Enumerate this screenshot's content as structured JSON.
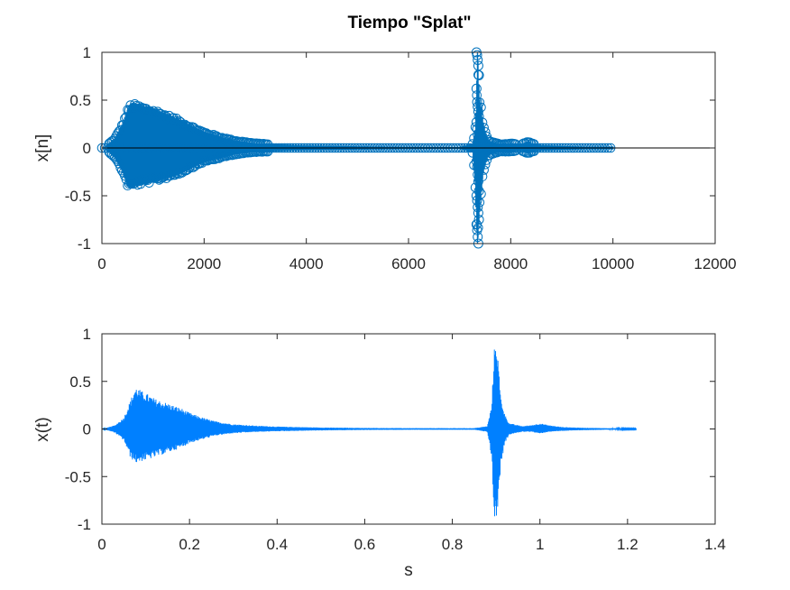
{
  "figure": {
    "title": "Tiempo \"Splat\""
  },
  "chart_data": [
    {
      "type": "line",
      "marker": "circle",
      "title": "Tiempo \"Splat\"",
      "xlabel": "",
      "ylabel": "x[n]",
      "xlim": [
        0,
        12000
      ],
      "ylim": [
        -1,
        1
      ],
      "xticks": [
        0,
        2000,
        4000,
        6000,
        8000,
        10000,
        12000
      ],
      "xtick_labels": [
        "0",
        "2000",
        "4000",
        "6000",
        "8000",
        "10000",
        "12000"
      ],
      "yticks": [
        -1,
        -0.5,
        0,
        0.5,
        1
      ],
      "ytick_labels": [
        "-1",
        "-0.5",
        "0",
        "0.5",
        "1"
      ],
      "grid": false,
      "color": "#0072BD",
      "baseline": 0,
      "num_samples": 10000,
      "envelope": {
        "x": [
          0,
          100,
          250,
          400,
          500,
          560,
          600,
          650,
          800,
          1000,
          1200,
          1500,
          1800,
          2000,
          2300,
          2600,
          3000,
          3500,
          4000,
          5000,
          6000,
          7000,
          7250,
          7300,
          7330,
          7350,
          7380,
          7400,
          7430,
          7450,
          7500,
          7550,
          7600,
          7800,
          8000,
          8200,
          8300,
          8350,
          8400,
          8600,
          9000,
          9500,
          10000
        ],
        "upper": [
          0,
          0.03,
          0.1,
          0.25,
          0.4,
          0.46,
          0.47,
          0.46,
          0.44,
          0.41,
          0.37,
          0.3,
          0.22,
          0.17,
          0.12,
          0.08,
          0.05,
          0.035,
          0.025,
          0.018,
          0.014,
          0.012,
          0.04,
          0.15,
          0.45,
          1.0,
          0.6,
          0.45,
          0.42,
          0.3,
          0.18,
          0.1,
          0.07,
          0.04,
          0.05,
          0.04,
          0.06,
          0.07,
          0.05,
          0.03,
          0.02,
          0.015,
          0.015
        ],
        "lower": [
          0,
          -0.03,
          -0.1,
          -0.25,
          -0.4,
          -0.42,
          -0.41,
          -0.4,
          -0.38,
          -0.36,
          -0.33,
          -0.28,
          -0.2,
          -0.15,
          -0.11,
          -0.07,
          -0.045,
          -0.032,
          -0.024,
          -0.018,
          -0.014,
          -0.012,
          -0.04,
          -0.3,
          -0.75,
          -1.0,
          -0.75,
          -0.6,
          -0.45,
          -0.3,
          -0.18,
          -0.1,
          -0.07,
          -0.04,
          -0.04,
          -0.03,
          -0.05,
          -0.06,
          -0.04,
          -0.03,
          -0.02,
          -0.015,
          -0.015
        ]
      }
    },
    {
      "type": "line",
      "title": "",
      "xlabel": "s",
      "ylabel": "x(t)",
      "xlim": [
        0,
        1.4
      ],
      "ylim": [
        -1,
        1
      ],
      "xticks": [
        0,
        0.2,
        0.4,
        0.6,
        0.8,
        1,
        1.2,
        1.4
      ],
      "xtick_labels": [
        "0",
        "0.2",
        "0.4",
        "0.6",
        "0.8",
        "1",
        "1.2",
        "1.4"
      ],
      "yticks": [
        -1,
        -0.5,
        0,
        0.5,
        1
      ],
      "ytick_labels": [
        "-1",
        "-0.5",
        "0",
        "0.5",
        "1"
      ],
      "grid": false,
      "color": "#0080FF",
      "envelope": {
        "x": [
          0,
          0.01,
          0.03,
          0.05,
          0.065,
          0.075,
          0.08,
          0.09,
          0.1,
          0.12,
          0.15,
          0.18,
          0.2,
          0.23,
          0.26,
          0.3,
          0.35,
          0.4,
          0.5,
          0.6,
          0.7,
          0.85,
          0.88,
          0.89,
          0.895,
          0.9,
          0.905,
          0.91,
          0.92,
          0.93,
          0.96,
          0.98,
          1.0,
          1.01,
          1.02,
          1.05,
          1.1,
          1.15,
          1.22
        ],
        "upper": [
          0,
          0.01,
          0.04,
          0.12,
          0.3,
          0.43,
          0.44,
          0.4,
          0.38,
          0.32,
          0.27,
          0.22,
          0.17,
          0.12,
          0.08,
          0.05,
          0.035,
          0.025,
          0.015,
          0.01,
          0.008,
          0.008,
          0.03,
          0.25,
          0.8,
          1.0,
          0.7,
          0.35,
          0.15,
          0.06,
          0.03,
          0.04,
          0.06,
          0.05,
          0.04,
          0.02,
          0.012,
          0.008,
          0.005
        ],
        "lower": [
          0,
          -0.01,
          -0.04,
          -0.12,
          -0.3,
          -0.35,
          -0.36,
          -0.34,
          -0.33,
          -0.3,
          -0.25,
          -0.2,
          -0.15,
          -0.11,
          -0.07,
          -0.045,
          -0.032,
          -0.024,
          -0.015,
          -0.01,
          -0.008,
          -0.008,
          -0.03,
          -0.3,
          -0.9,
          -1.0,
          -0.8,
          -0.4,
          -0.15,
          -0.06,
          -0.03,
          -0.03,
          -0.05,
          -0.04,
          -0.03,
          -0.02,
          -0.012,
          -0.008,
          -0.005
        ]
      }
    }
  ]
}
